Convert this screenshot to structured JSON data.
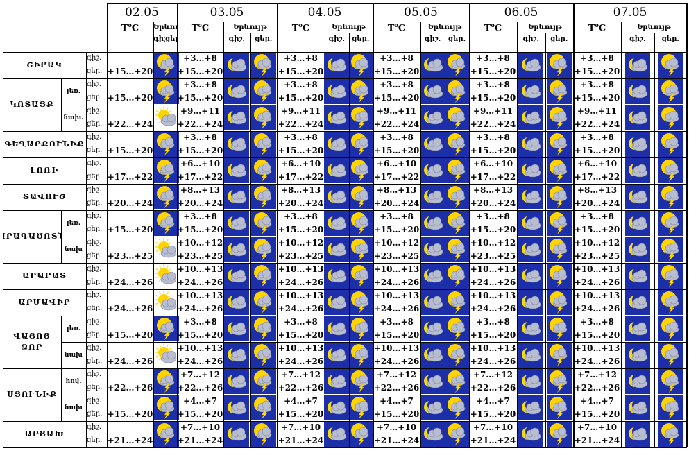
{
  "dates": [
    "02.05",
    "03.05",
    "04.05",
    "05.05",
    "06.05",
    "07.05"
  ],
  "header": {
    "temp_label": "T°C",
    "day_label": "Երևույթ",
    "night_short": "գիշ.",
    "day_short": "ցեր."
  },
  "colors": {
    "night_bg": "#1c2fa8",
    "moon": "#f2d81a",
    "cloud": "#b9bdd0",
    "sun": "#ffd400",
    "lightning": "#ffdd00"
  },
  "rows": [
    {
      "region": "ՇԻՐԱԿ",
      "night": "+3…+8",
      "day": "+15…+20",
      "icon02": "sun-cloud-storm",
      "nicon": "moon-cloud",
      "dicon": "sun-cloud-storm"
    },
    {
      "region": "ԿՈՏԱՅՔ",
      "sub": "լեռ.",
      "night": "+3…+8",
      "day": "+15…+20",
      "icon02": "sun-cloud-storm",
      "nicon": "moon-cloud",
      "dicon": "sun-cloud-storm"
    },
    {
      "region": "",
      "sub": "նախ.",
      "night": "+9…+11",
      "day": "+22…+24",
      "icon02": "sun-cloud",
      "nicon": "moon-cloud",
      "dicon": "sun-cloud-storm"
    },
    {
      "region": "ԳԵՂԱՐՔՈՒՆԻՔ",
      "night": "+3…+8",
      "day": "+15…+20",
      "icon02": "sun-cloud-storm",
      "nicon": "moon-cloud",
      "dicon": "sun-cloud-storm"
    },
    {
      "region": "ԼՈՌԻ",
      "night": "+6…+10",
      "day": "+17…+22",
      "icon02": "sun-cloud-storm",
      "nicon": "moon-cloud",
      "dicon": "sun-cloud-storm"
    },
    {
      "region": "ՏԱՎՈՒՇ",
      "night": "+8…+13",
      "day": "+20…+24",
      "icon02": "sun-cloud-storm",
      "nicon": "moon-cloud",
      "dicon": "sun-cloud-storm"
    },
    {
      "region": "ԱՐԱԳԱԾՈՏՆ",
      "sub": "լեռ.",
      "night": "+3…+8",
      "day": "+15…+20",
      "icon02": "sun-cloud-storm",
      "nicon": "moon-cloud",
      "dicon": "sun-cloud-storm"
    },
    {
      "region": "",
      "sub": "նախ",
      "night": "+10…+12",
      "day": "+23…+25",
      "icon02": "sun-cloud",
      "nicon": "moon-cloud",
      "dicon": "sun-cloud-storm"
    },
    {
      "region": "ԱՐԱՐԱՏ",
      "night": "+10…+13",
      "day": "+24…+26",
      "icon02": "sun-cloud",
      "nicon": "moon-cloud",
      "dicon": "sun-cloud-storm"
    },
    {
      "region": "ԱՐՄԱՎԻՐ",
      "night": "+10…+13",
      "day": "+24…+26",
      "icon02": "sun-cloud",
      "nicon": "moon-cloud",
      "dicon": "sun-cloud-storm"
    },
    {
      "region": "ՎԱՅՈՑ ՁՈՐ",
      "sub": "լեռ.",
      "night": "+3…+8",
      "day": "+15…+20",
      "icon02": "sun-cloud-storm",
      "nicon": "moon-cloud",
      "dicon": "sun-cloud-storm"
    },
    {
      "region": "",
      "sub": "նախ",
      "night": "+10…+13",
      "day": "+24…+26",
      "icon02": "sun-cloud",
      "nicon": "moon-cloud",
      "dicon": "sun-cloud-storm"
    },
    {
      "region": "ՍՅՈՒՆԻՔ",
      "sub": "հով.",
      "night": "+7…+12",
      "day": "+22…+26",
      "icon02": "sun-cloud-storm",
      "nicon": "moon-cloud",
      "dicon": "sun-cloud-storm"
    },
    {
      "region": "",
      "sub": "նախ",
      "night": "+4…+7",
      "day": "+15…+20",
      "icon02": "sun-cloud-storm",
      "nicon": "moon-cloud",
      "dicon": "sun-cloud-storm"
    },
    {
      "region": "ԱՐՑԱԽ",
      "night": "+7…+10",
      "day": "+21…+24",
      "icon02": "sun-cloud-storm",
      "nicon": "moon-cloud",
      "dicon": "sun-cloud-storm"
    }
  ]
}
